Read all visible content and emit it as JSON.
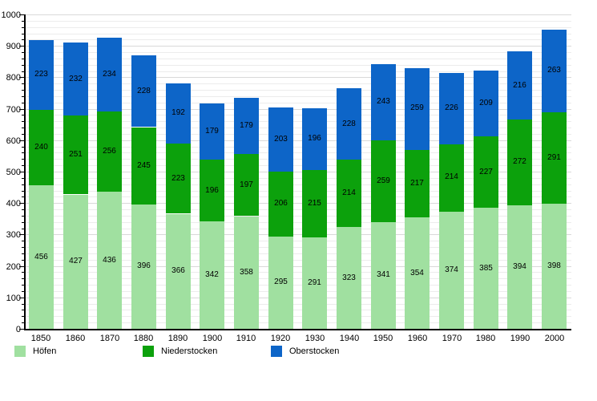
{
  "chart_data": {
    "type": "bar",
    "stacked": true,
    "title": "",
    "xlabel": "",
    "ylabel": "",
    "categories": [
      "1850",
      "1860",
      "1870",
      "1880",
      "1890",
      "1900",
      "1910",
      "1920",
      "1930",
      "1940",
      "1950",
      "1960",
      "1970",
      "1980",
      "1990",
      "2000"
    ],
    "series": [
      {
        "name": "Höfen",
        "color": "#a0e0a0",
        "values": [
          456,
          427,
          436,
          396,
          366,
          342,
          358,
          295,
          291,
          323,
          341,
          354,
          374,
          385,
          394,
          398
        ]
      },
      {
        "name": "Niederstocken",
        "color": "#0ca10c",
        "values": [
          240,
          251,
          256,
          245,
          223,
          196,
          197,
          206,
          215,
          214,
          259,
          217,
          214,
          227,
          272,
          291
        ]
      },
      {
        "name": "Oberstocken",
        "color": "#0d65c8",
        "values": [
          223,
          232,
          234,
          228,
          192,
          179,
          179,
          203,
          196,
          228,
          243,
          259,
          226,
          209,
          216,
          263
        ]
      }
    ],
    "ylim": [
      0,
      1000
    ],
    "y_major_step": 100,
    "y_minor_step": 20,
    "y_tick_labels": [
      "0",
      "100",
      "200",
      "300",
      "400",
      "500",
      "600",
      "700",
      "800",
      "900",
      "1000"
    ],
    "grid": "on",
    "bar_value_labels": "shown-inside-segments",
    "legend_position": "bottom"
  }
}
